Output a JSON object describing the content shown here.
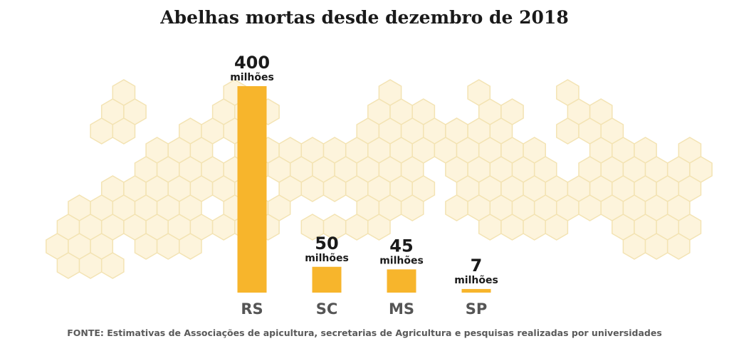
{
  "title": "Abelhas mortas desde dezembro de 2018",
  "source": "FONTE: Estimativas de Associações de apicultura, secretarias de Agricultura e pesquisas realizadas por universidades",
  "colors": {
    "bar": "#f7b52c",
    "hex_fill": "#fdf4dc",
    "hex_stroke": "#f3e3b3",
    "value_text": "#1a1a1a",
    "category_text": "#555555"
  },
  "chart_data": {
    "type": "bar",
    "title": "Abelhas mortas desde dezembro de 2018",
    "categories": [
      "RS",
      "SC",
      "MS",
      "SP"
    ],
    "values": [
      400,
      50,
      45,
      7
    ],
    "value_labels": [
      "400",
      "50",
      "45",
      "7"
    ],
    "value_unit": "milhões",
    "xlabel": "",
    "ylabel": "",
    "ylim": [
      0,
      400
    ],
    "grid": false,
    "legend": "none"
  }
}
